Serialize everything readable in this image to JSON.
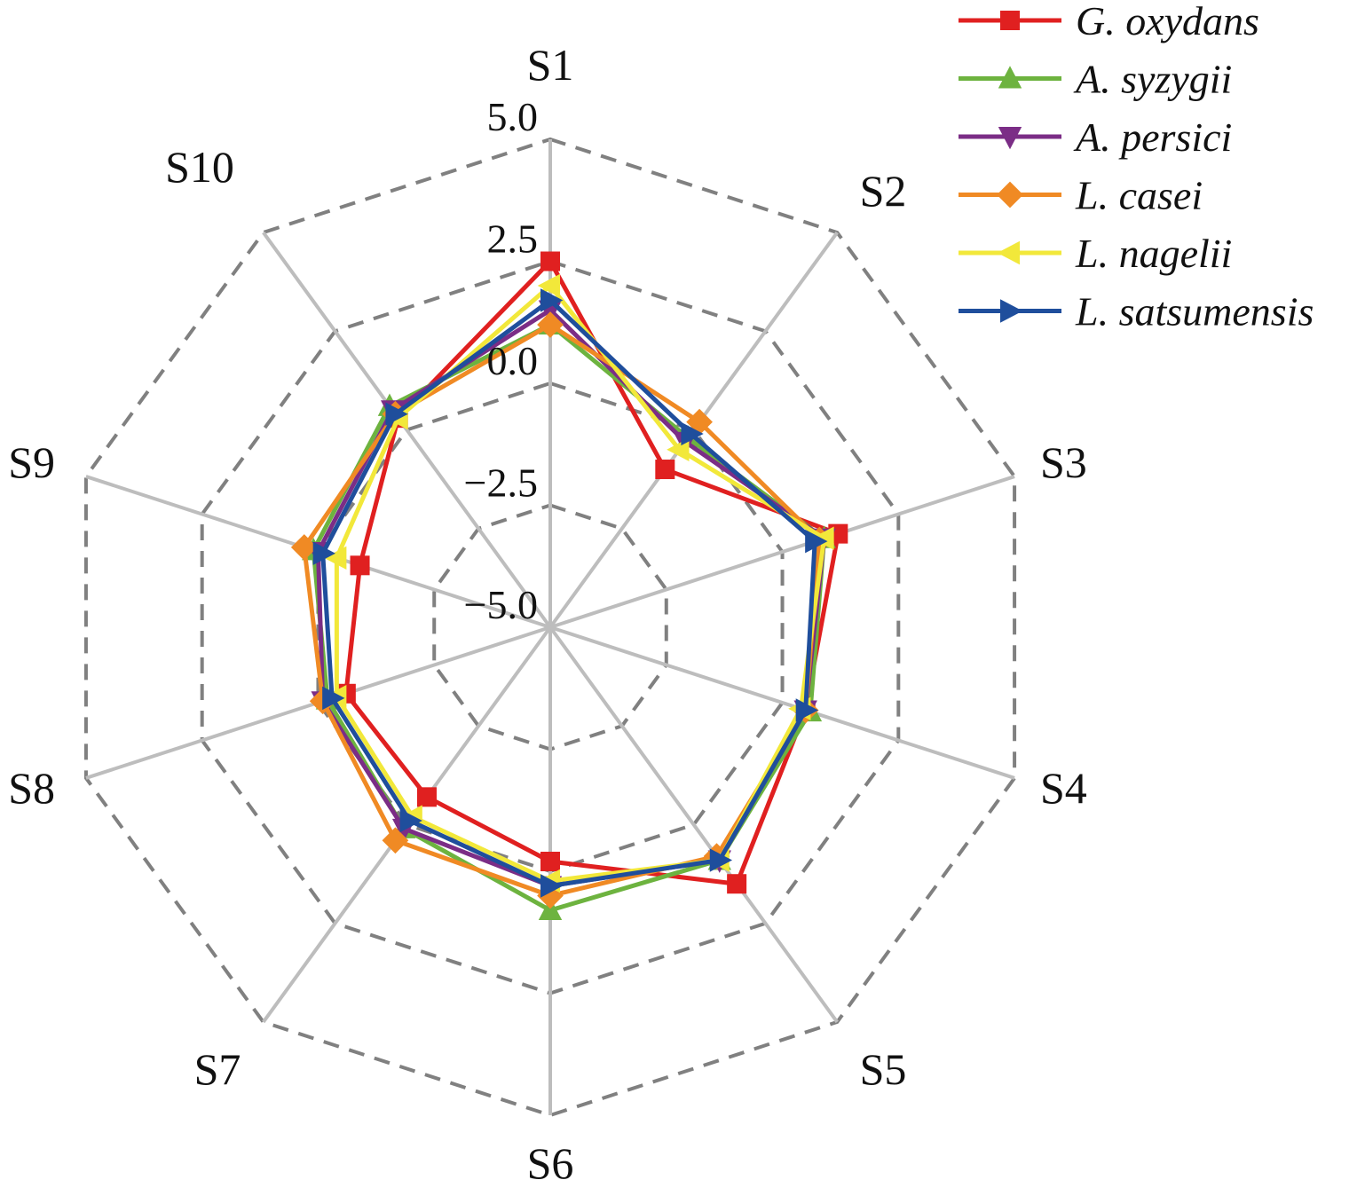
{
  "chart_data": {
    "type": "radar",
    "title": "",
    "axes": [
      "S1",
      "S2",
      "S3",
      "S4",
      "S5",
      "S6",
      "S7",
      "S8",
      "S9",
      "S10"
    ],
    "rlim": [
      -5.0,
      5.0
    ],
    "ticks": [
      5.0,
      2.5,
      0.0,
      -2.5,
      -5.0
    ],
    "tick_labels": [
      "5.0",
      "2.5",
      "0.0",
      "−2.5",
      "−5.0"
    ],
    "grid": true,
    "legend_position": "top-right",
    "series": [
      {
        "name": "G. oxydans",
        "color": "#e02020",
        "marker": "square",
        "values": [
          2.5,
          -1.0,
          1.2,
          0.5,
          1.5,
          -0.2,
          -0.7,
          -0.6,
          -0.9,
          0.3
        ]
      },
      {
        "name": "A. syzygii",
        "color": "#6db33f",
        "marker": "triangle-up",
        "values": [
          1.2,
          -0.2,
          0.9,
          0.6,
          0.9,
          0.8,
          0.1,
          -0.2,
          0.1,
          0.6
        ]
      },
      {
        "name": "A. persici",
        "color": "#7b2d86",
        "marker": "triangle-down",
        "values": [
          1.5,
          -0.3,
          0.9,
          0.5,
          0.9,
          0.3,
          0.1,
          -0.1,
          0.0,
          0.5
        ]
      },
      {
        "name": "L. casei",
        "color": "#f08a24",
        "marker": "diamond",
        "values": [
          1.2,
          0.2,
          0.8,
          0.5,
          0.8,
          0.5,
          0.4,
          -0.1,
          0.3,
          0.4
        ]
      },
      {
        "name": "L. nagelii",
        "color": "#f2e83a",
        "marker": "triangle-left",
        "values": [
          2.0,
          -0.5,
          0.9,
          0.4,
          0.9,
          0.2,
          -0.2,
          -0.4,
          -0.4,
          0.3
        ]
      },
      {
        "name": "L. satsumensis",
        "color": "#1f4e9c",
        "marker": "triangle-right",
        "values": [
          1.7,
          -0.1,
          0.7,
          0.5,
          0.9,
          0.3,
          -0.1,
          -0.3,
          -0.1,
          0.4
        ]
      }
    ]
  }
}
